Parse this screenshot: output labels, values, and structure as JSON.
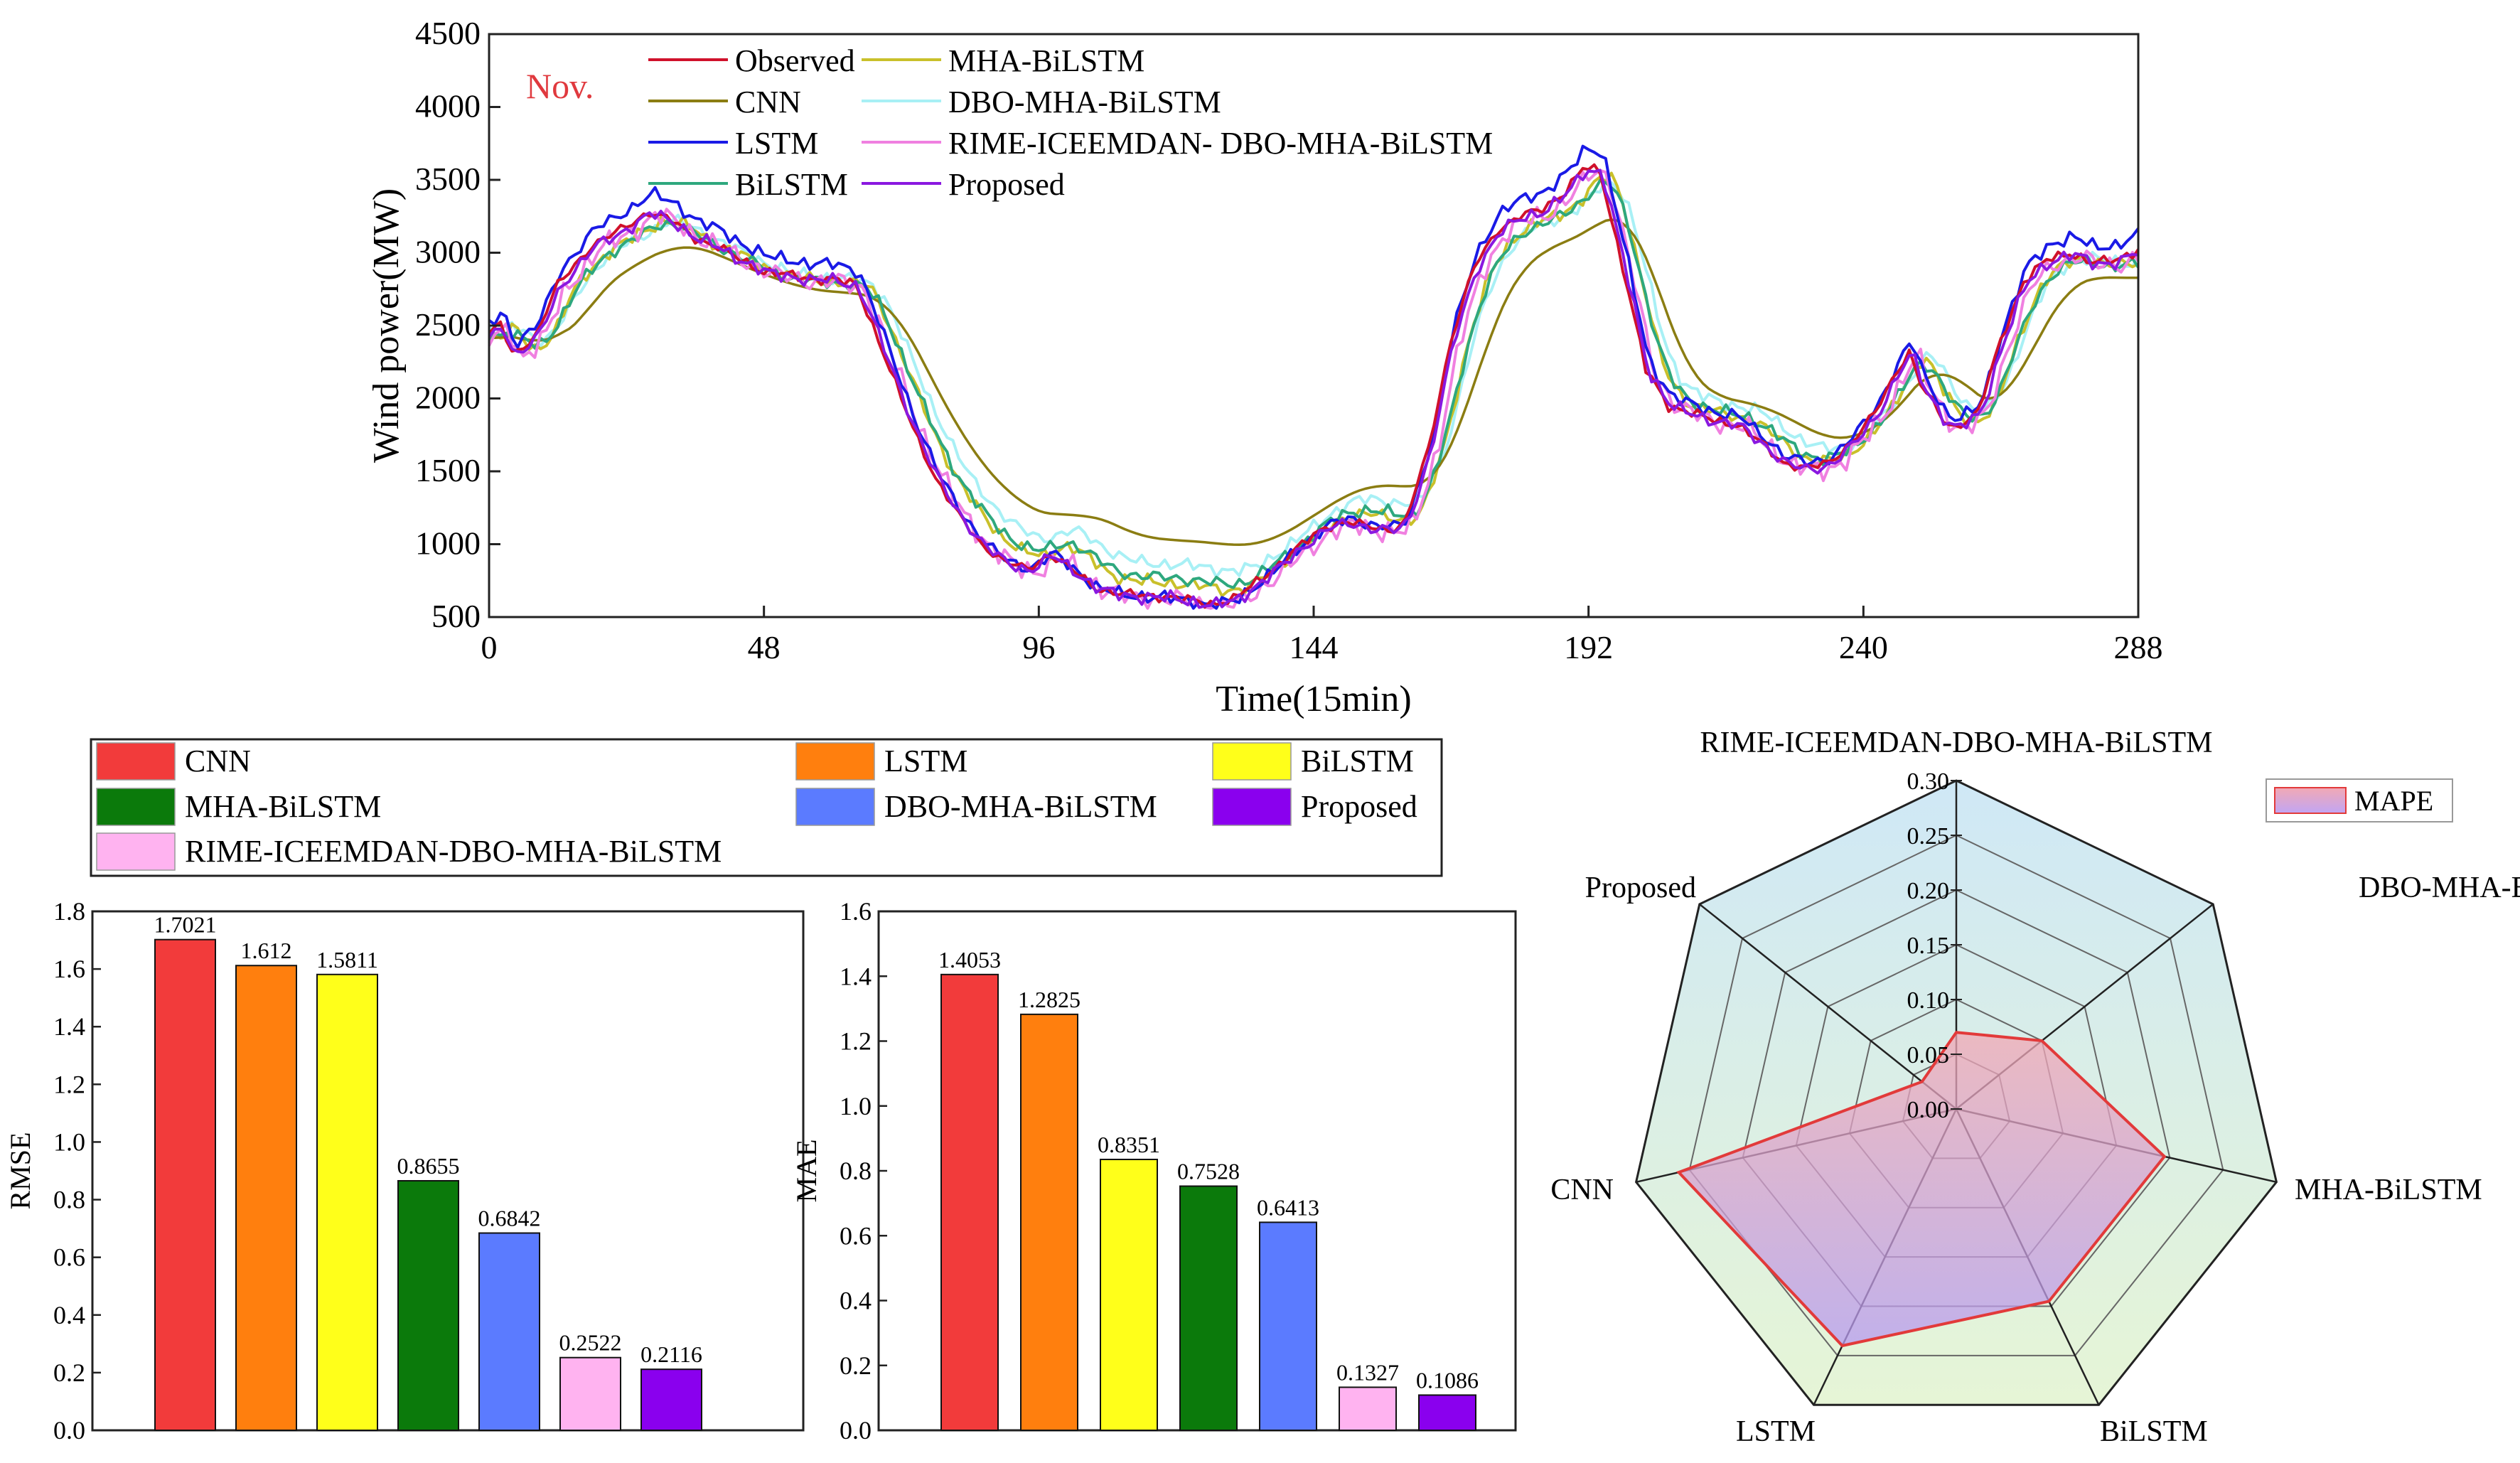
{
  "colors": {
    "CNN": "#f23b3b",
    "LSTM": "#ff7f0e",
    "BiLSTM": "#ffff1a",
    "MHA-BiLSTM": "#0b7a0b",
    "DBO-MHA-BiLSTM": "#5b7bff",
    "RIME-ICEEMDAN-DBO-MHA-BiLSTM": "#ffb3f0",
    "Proposed": "#8a00ee",
    "line_Observed": "#d0112b",
    "line_CNN": "#8b7d12",
    "line_LSTM": "#1a1ae6",
    "line_BiLSTM": "#2ea87e",
    "line_MHA": "#c9c02a",
    "line_DBO": "#a8f0f5",
    "line_RIME": "#f080e0",
    "line_Proposed": "#8a18e0",
    "radar_edge": "#e23a3a",
    "nov_label": "#e0393e"
  },
  "chart_data": [
    {
      "type": "line",
      "title": "",
      "annotation": "Nov.",
      "xlabel": "Time(15min)",
      "ylabel": "Wind power(MW)",
      "xlim": [
        0,
        288
      ],
      "ylim": [
        500,
        4500
      ],
      "xticks": [
        0,
        48,
        96,
        144,
        192,
        240,
        288
      ],
      "yticks": [
        500,
        1000,
        1500,
        2000,
        2500,
        3000,
        3500,
        4000,
        4500
      ],
      "legend": [
        {
          "name": "Observed",
          "key": "line_Observed"
        },
        {
          "name": "CNN",
          "key": "line_CNN"
        },
        {
          "name": "LSTM",
          "key": "line_LSTM"
        },
        {
          "name": "BiLSTM",
          "key": "line_BiLSTM"
        },
        {
          "name": "MHA-BiLSTM",
          "key": "line_MHA"
        },
        {
          "name": "DBO-MHA-BiLSTM",
          "key": "line_DBO"
        },
        {
          "name": "RIME-ICEEMDAN- DBO-MHA-BiLSTM",
          "key": "line_RIME"
        },
        {
          "name": "Proposed",
          "key": "line_Proposed"
        }
      ],
      "series_draw_order": [
        "line_DBO",
        "line_MHA",
        "line_CNN",
        "line_BiLSTM",
        "line_RIME",
        "line_LSTM",
        "line_Observed",
        "line_Proposed"
      ],
      "observed_anchors": [
        [
          0,
          2430
        ],
        [
          2,
          2520
        ],
        [
          4,
          2300
        ],
        [
          8,
          2420
        ],
        [
          12,
          2780
        ],
        [
          18,
          3050
        ],
        [
          24,
          3180
        ],
        [
          28,
          3280
        ],
        [
          32,
          3220
        ],
        [
          36,
          3100
        ],
        [
          40,
          3040
        ],
        [
          44,
          2950
        ],
        [
          48,
          2870
        ],
        [
          52,
          2850
        ],
        [
          56,
          2820
        ],
        [
          60,
          2820
        ],
        [
          64,
          2780
        ],
        [
          66,
          2600
        ],
        [
          70,
          2200
        ],
        [
          74,
          1800
        ],
        [
          78,
          1450
        ],
        [
          82,
          1200
        ],
        [
          86,
          1000
        ],
        [
          90,
          880
        ],
        [
          94,
          830
        ],
        [
          98,
          930
        ],
        [
          102,
          820
        ],
        [
          106,
          700
        ],
        [
          110,
          660
        ],
        [
          114,
          650
        ],
        [
          118,
          640
        ],
        [
          122,
          620
        ],
        [
          126,
          590
        ],
        [
          130,
          620
        ],
        [
          134,
          740
        ],
        [
          138,
          860
        ],
        [
          142,
          1000
        ],
        [
          146,
          1120
        ],
        [
          150,
          1150
        ],
        [
          154,
          1120
        ],
        [
          158,
          1100
        ],
        [
          160,
          1150
        ],
        [
          164,
          1650
        ],
        [
          168,
          2400
        ],
        [
          172,
          2900
        ],
        [
          176,
          3150
        ],
        [
          180,
          3250
        ],
        [
          184,
          3300
        ],
        [
          188,
          3420
        ],
        [
          191,
          3580
        ],
        [
          194,
          3560
        ],
        [
          198,
          2900
        ],
        [
          202,
          2200
        ],
        [
          206,
          1950
        ],
        [
          210,
          1900
        ],
        [
          214,
          1850
        ],
        [
          218,
          1820
        ],
        [
          222,
          1700
        ],
        [
          226,
          1560
        ],
        [
          230,
          1520
        ],
        [
          234,
          1560
        ],
        [
          238,
          1700
        ],
        [
          242,
          1900
        ],
        [
          246,
          2200
        ],
        [
          248,
          2320
        ],
        [
          250,
          2100
        ],
        [
          254,
          1850
        ],
        [
          256,
          1800
        ],
        [
          260,
          1900
        ],
        [
          264,
          2400
        ],
        [
          268,
          2800
        ],
        [
          272,
          2950
        ],
        [
          276,
          3000
        ],
        [
          280,
          2930
        ],
        [
          284,
          2950
        ],
        [
          288,
          3020
        ]
      ],
      "model_behavior": [
        {
          "key": "line_CNN",
          "lag": 6,
          "scale": 0.78,
          "bias": 80,
          "smooth": 5
        },
        {
          "key": "line_LSTM",
          "lag": 0.5,
          "scale": 1.05,
          "bias": 60,
          "smooth": 0
        },
        {
          "key": "line_BiLSTM",
          "lag": 3,
          "scale": 0.93,
          "bias": 30,
          "smooth": 2
        },
        {
          "key": "line_MHA",
          "lag": 3,
          "scale": 0.95,
          "bias": 20,
          "smooth": 1
        },
        {
          "key": "line_DBO",
          "lag": 4,
          "scale": 0.9,
          "bias": 80,
          "smooth": 2
        },
        {
          "key": "line_RIME",
          "lag": 1.5,
          "scale": 1.0,
          "bias": -20,
          "smooth": 0
        },
        {
          "key": "line_Proposed",
          "lag": 0.5,
          "scale": 1.0,
          "bias": -10,
          "smooth": 0
        }
      ]
    },
    {
      "type": "bar",
      "ylabel": "RMSE",
      "ylim": [
        0,
        1.8
      ],
      "yticks": [
        "0.0",
        "0.2",
        "0.4",
        "0.6",
        "0.8",
        "1.0",
        "1.2",
        "1.4",
        "1.6",
        "1.8"
      ],
      "categories": [
        "CNN",
        "LSTM",
        "BiLSTM",
        "MHA-BiLSTM",
        "DBO-MHA-BiLSTM",
        "RIME-ICEEMDAN-DBO-MHA-BiLSTM",
        "Proposed"
      ],
      "values": [
        1.7021,
        1.612,
        1.5811,
        0.8655,
        0.6842,
        0.2522,
        0.2116
      ],
      "labels": [
        "1.7021",
        "1.612",
        "1.5811",
        "0.8655",
        "0.6842",
        "0.2522",
        "0.2116"
      ]
    },
    {
      "type": "bar",
      "ylabel": "MAE",
      "ylim": [
        0,
        1.6
      ],
      "yticks": [
        "0.0",
        "0.2",
        "0.4",
        "0.6",
        "0.8",
        "1.0",
        "1.2",
        "1.4",
        "1.6"
      ],
      "categories": [
        "CNN",
        "LSTM",
        "BiLSTM",
        "MHA-BiLSTM",
        "DBO-MHA-BiLSTM",
        "RIME-ICEEMDAN-DBO-MHA-BiLSTM",
        "Proposed"
      ],
      "values": [
        1.4053,
        1.2825,
        0.8351,
        0.7528,
        0.6413,
        0.1327,
        0.1086
      ],
      "labels": [
        "1.4053",
        "1.2825",
        "0.8351",
        "0.7528",
        "0.6413",
        "0.1327",
        "0.1086"
      ]
    },
    {
      "type": "radar",
      "legend": "MAPE",
      "rmax": 0.3,
      "rticks": [
        "0.00",
        "0.05",
        "0.10",
        "0.15",
        "0.20",
        "0.25",
        "0.30"
      ],
      "axes": [
        "RIME-ICEEMDAN-DBO-MHA-BiLSTM",
        "DBO-MHA-BiLSTM",
        "MHA-BiLSTM",
        "BiLSTM",
        "LSTM",
        "CNN",
        "Proposed"
      ],
      "values": [
        0.07,
        0.1,
        0.195,
        0.195,
        0.24,
        0.26,
        0.04
      ]
    }
  ],
  "bar_legend": [
    "CNN",
    "LSTM",
    "BiLSTM",
    "MHA-BiLSTM",
    "DBO-MHA-BiLSTM",
    "Proposed",
    "RIME-ICEEMDAN-DBO-MHA-BiLSTM"
  ]
}
